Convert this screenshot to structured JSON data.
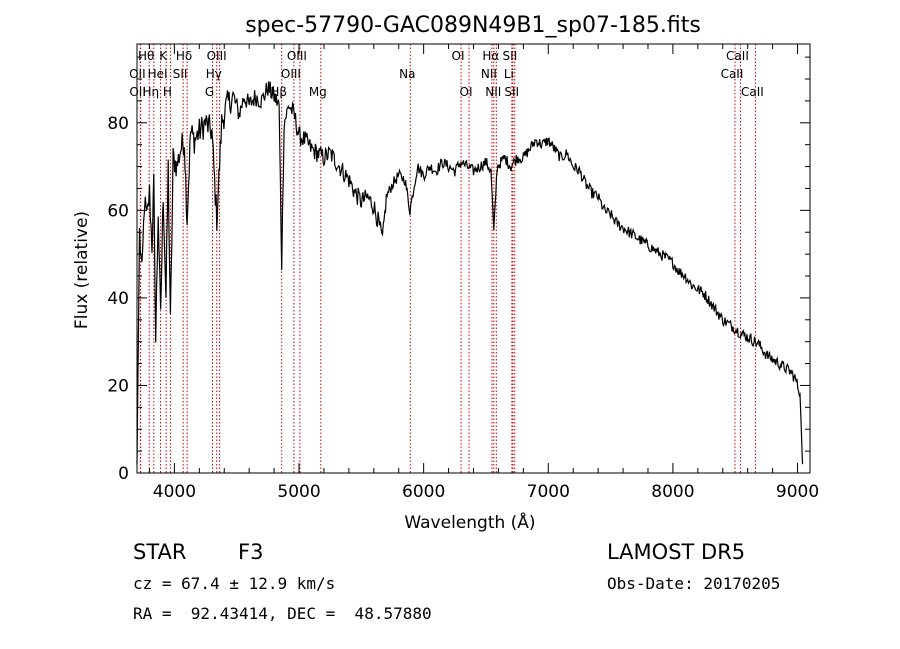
{
  "chart_data": {
    "type": "line",
    "title": "spec-57790-GAC089N49B1_sp07-185.fits",
    "xlabel": "Wavelength (Å)",
    "ylabel": "Flux (relative)",
    "xlim": [
      3700,
      9100
    ],
    "ylim": [
      0,
      98
    ],
    "x_ticks": [
      4000,
      5000,
      6000,
      7000,
      8000,
      9000
    ],
    "y_ticks": [
      0,
      20,
      40,
      60,
      80
    ],
    "grid": false,
    "legend": "none",
    "line_color": "#000000",
    "marker_color": "#cc0000",
    "spectrum": {
      "x": [
        3700,
        3720,
        3740,
        3760,
        3780,
        3800,
        3820,
        3835,
        3850,
        3870,
        3889,
        3910,
        3933,
        3950,
        3968,
        3990,
        4020,
        4050,
        4080,
        4102,
        4130,
        4160,
        4200,
        4250,
        4300,
        4340,
        4380,
        4420,
        4470,
        4520,
        4560,
        4600,
        4650,
        4700,
        4750,
        4800,
        4840,
        4861,
        4880,
        4920,
        4960,
        5000,
        5050,
        5100,
        5150,
        5200,
        5250,
        5300,
        5350,
        5400,
        5450,
        5500,
        5550,
        5600,
        5640,
        5670,
        5700,
        5750,
        5800,
        5850,
        5890,
        5950,
        6000,
        6050,
        6100,
        6150,
        6200,
        6250,
        6300,
        6350,
        6400,
        6450,
        6500,
        6540,
        6563,
        6590,
        6650,
        6700,
        6750,
        6800,
        6850,
        6900,
        6950,
        7000,
        7050,
        7100,
        7150,
        7200,
        7250,
        7300,
        7350,
        7400,
        7450,
        7500,
        7550,
        7600,
        7650,
        7700,
        7750,
        7800,
        7850,
        7900,
        7950,
        8000,
        8050,
        8100,
        8150,
        8200,
        8250,
        8300,
        8350,
        8400,
        8450,
        8500,
        8542,
        8600,
        8662,
        8700,
        8750,
        8800,
        8850,
        8900,
        8950,
        8990,
        9020,
        9040
      ],
      "y": [
        2,
        55,
        45,
        62,
        58,
        64,
        52,
        66,
        30,
        60,
        35,
        64,
        40,
        70,
        34,
        72,
        70,
        74,
        76,
        58,
        78,
        76,
        78,
        80,
        78,
        58,
        80,
        84,
        86,
        82,
        86,
        84,
        86,
        85,
        88,
        86,
        84,
        48,
        80,
        84,
        82,
        77,
        76,
        74,
        73,
        72,
        73,
        71,
        69,
        67,
        64,
        62,
        63,
        61,
        57,
        53,
        63,
        66,
        68,
        67,
        60,
        70,
        68,
        70,
        69,
        71,
        70,
        69,
        71,
        70,
        69,
        70,
        71,
        69,
        55,
        70,
        72,
        70,
        72,
        72,
        74,
        76,
        75,
        76,
        74,
        72,
        73,
        70,
        69,
        66,
        64,
        63,
        60,
        59,
        57,
        56,
        55,
        54,
        53,
        52,
        51,
        50,
        49,
        48,
        46,
        45,
        43,
        42,
        41,
        39,
        37,
        35,
        34,
        33,
        32,
        31,
        30,
        29,
        27,
        26,
        25,
        24,
        23,
        21,
        18,
        2
      ]
    },
    "lines": [
      {
        "name": "Hθ",
        "x": 3798,
        "row": 0
      },
      {
        "name": "OII",
        "x": 3727,
        "row": 1
      },
      {
        "name": "OII",
        "x": 3729,
        "row": 2
      },
      {
        "name": "K",
        "x": 3934,
        "row": 0
      },
      {
        "name": "HeI",
        "x": 3889,
        "row": 1
      },
      {
        "name": "Hη",
        "x": 3835,
        "row": 2
      },
      {
        "name": "H",
        "x": 3968,
        "row": 2
      },
      {
        "name": "Hδ",
        "x": 4102,
        "row": 0
      },
      {
        "name": "SII",
        "x": 4070,
        "row": 1
      },
      {
        "name": "OIII",
        "x": 4363,
        "row": 0
      },
      {
        "name": "Hγ",
        "x": 4340,
        "row": 1
      },
      {
        "name": "G",
        "x": 4306,
        "row": 2
      },
      {
        "name": "OIII",
        "x": 5007,
        "row": 0
      },
      {
        "name": "OIII",
        "x": 4959,
        "row": 1
      },
      {
        "name": "Hβ",
        "x": 4861,
        "row": 2
      },
      {
        "name": "Mg",
        "x": 5175,
        "row": 2
      },
      {
        "name": "Na",
        "x": 5893,
        "row": 1
      },
      {
        "name": "OI",
        "x": 6300,
        "row": 0
      },
      {
        "name": "OI",
        "x": 6364,
        "row": 2
      },
      {
        "name": "Hα",
        "x": 6563,
        "row": 0
      },
      {
        "name": "NII",
        "x": 6548,
        "row": 1
      },
      {
        "name": "NII",
        "x": 6583,
        "row": 2
      },
      {
        "name": "SII",
        "x": 6716,
        "row": 0
      },
      {
        "name": "Li",
        "x": 6708,
        "row": 1
      },
      {
        "name": "SII",
        "x": 6731,
        "row": 2
      },
      {
        "name": "CaII",
        "x": 8542,
        "row": 0
      },
      {
        "name": "CaII",
        "x": 8498,
        "row": 1
      },
      {
        "name": "CaII",
        "x": 8662,
        "row": 2
      }
    ]
  },
  "info": {
    "object_class": "STAR",
    "subclass": "F3",
    "survey": "LAMOST DR5",
    "cz": "cz = 67.4 ± 12.9 km/s",
    "obs_date": "Obs-Date: 20170205",
    "coords": "RA =  92.43414, DEC =  48.57880"
  }
}
